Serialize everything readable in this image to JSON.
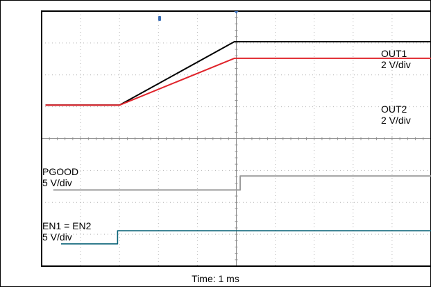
{
  "chart_data": {
    "type": "line",
    "title": "",
    "xlabel": "Time: 1 ms",
    "ylabel": "",
    "grid": true,
    "x_divisions": 10,
    "y_divisions": 8,
    "x_unit": "div",
    "y_unit": "div",
    "colors": {
      "OUT1": "#000000",
      "OUT2": "#e0242b",
      "PGOOD": "#9a9a9a",
      "EN": "#0a6378",
      "grid": "#b4b4b4",
      "frame": "#000000"
    },
    "series": [
      {
        "key": "OUT1",
        "label_lines": [
          "OUT1",
          "2 V/div"
        ],
        "points": [
          [
            0.1,
            5.05
          ],
          [
            2.0,
            5.05
          ],
          [
            4.95,
            7.04
          ],
          [
            10.0,
            7.04
          ]
        ]
      },
      {
        "key": "OUT2",
        "label_lines": [
          "OUT2",
          "2 V/div"
        ],
        "points": [
          [
            0.1,
            5.05
          ],
          [
            2.0,
            5.05
          ],
          [
            4.95,
            6.52
          ],
          [
            10.0,
            6.52
          ]
        ]
      },
      {
        "key": "PGOOD",
        "label_lines": [
          "PGOOD",
          "5 V/div"
        ],
        "points": [
          [
            0.3,
            2.39
          ],
          [
            5.1,
            2.39
          ],
          [
            5.1,
            2.83
          ],
          [
            10.0,
            2.83
          ]
        ]
      },
      {
        "key": "EN",
        "label_lines": [
          "EN1 = EN2",
          "5 V/div"
        ],
        "points": [
          [
            0.5,
            0.7
          ],
          [
            1.95,
            0.7
          ],
          [
            1.95,
            1.11
          ],
          [
            10.0,
            1.11
          ]
        ]
      }
    ]
  }
}
